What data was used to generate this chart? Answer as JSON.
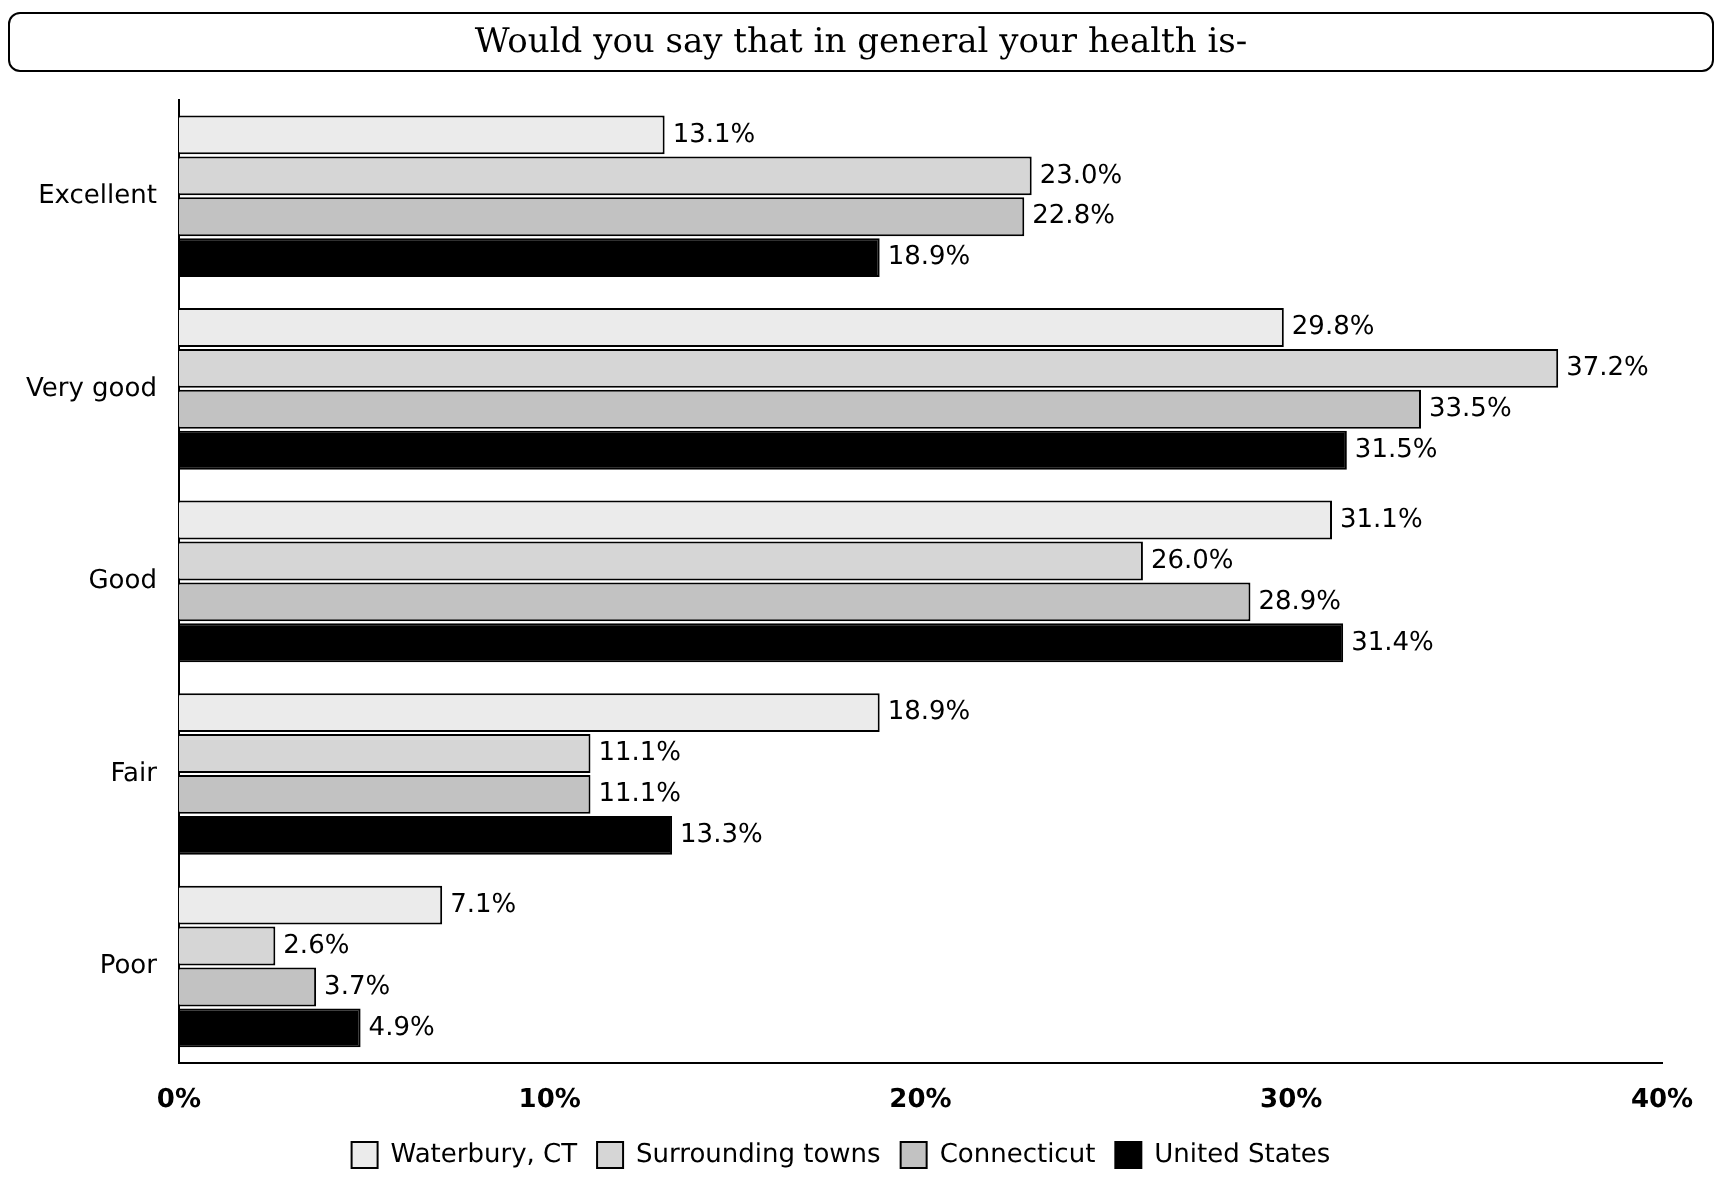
{
  "chart_data": {
    "type": "bar",
    "orientation": "horizontal",
    "title": "Would you say that in general your health is-",
    "categories": [
      "Excellent",
      "Very good",
      "Good",
      "Fair",
      "Poor"
    ],
    "series": [
      {
        "name": "Waterbury, CT",
        "color": "#ebebeb",
        "values": [
          13.1,
          29.8,
          31.1,
          18.9,
          7.1
        ],
        "value_labels": [
          "13.1%",
          "29.8%",
          "31.1%",
          "18.9%",
          "7.1%"
        ]
      },
      {
        "name": "Surrounding towns",
        "color": "#d6d6d6",
        "values": [
          23.0,
          37.2,
          26.0,
          11.1,
          2.6
        ],
        "value_labels": [
          "23.0%",
          "37.2%",
          "26.0%",
          "11.1%",
          "2.6%"
        ]
      },
      {
        "name": "Connecticut",
        "color": "#c2c2c2",
        "values": [
          22.8,
          33.5,
          28.9,
          11.1,
          3.7
        ],
        "value_labels": [
          "22.8%",
          "33.5%",
          "28.9%",
          "11.1%",
          "3.7%"
        ]
      },
      {
        "name": "United States",
        "color": "#000000",
        "values": [
          18.9,
          31.5,
          31.4,
          13.3,
          4.9
        ],
        "value_labels": [
          "18.9%",
          "31.5%",
          "31.4%",
          "13.3%",
          "4.9%"
        ]
      }
    ],
    "xlim": [
      0,
      40
    ],
    "xticks": [
      {
        "value": 0,
        "label": "0%"
      },
      {
        "value": 10,
        "label": "10%"
      },
      {
        "value": 20,
        "label": "20%"
      },
      {
        "value": 30,
        "label": "30%"
      },
      {
        "value": 40,
        "label": "40%"
      }
    ],
    "grid": false,
    "legend": "bottom"
  }
}
